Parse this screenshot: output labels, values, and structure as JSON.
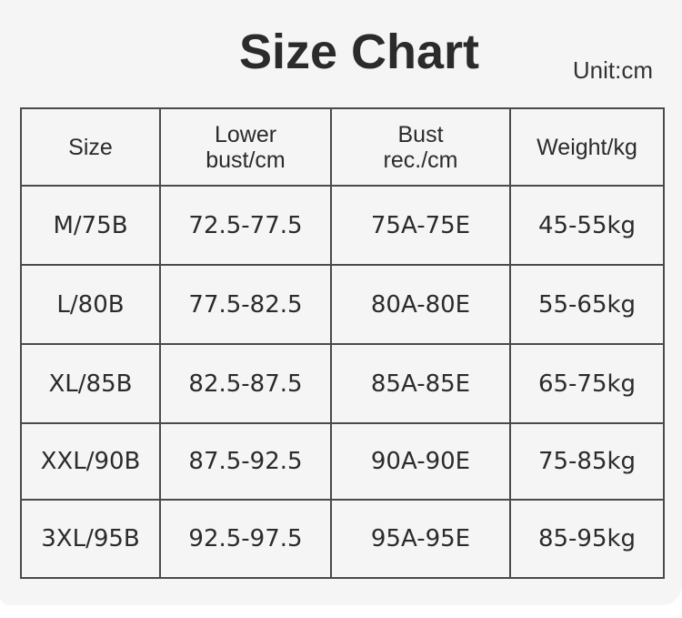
{
  "title": "Size Chart",
  "unit": "Unit:cm",
  "headers": [
    "Size",
    "Lower\nbust/cm",
    "Bust\nrec./cm",
    "Weight/kg"
  ],
  "rows": [
    [
      "M/75B",
      "72.5-77.5",
      "75A-75E",
      "45-55kg"
    ],
    [
      "L/80B",
      "77.5-82.5",
      "80A-80E",
      "55-65kg"
    ],
    [
      "XL/85B",
      "82.5-87.5",
      "85A-85E",
      "65-75kg"
    ],
    [
      "XXL/90B",
      "87.5-92.5",
      "90A-90E",
      "75-85kg"
    ],
    [
      "3XL/95B",
      "92.5-97.5",
      "95A-95E",
      "85-95kg"
    ]
  ]
}
